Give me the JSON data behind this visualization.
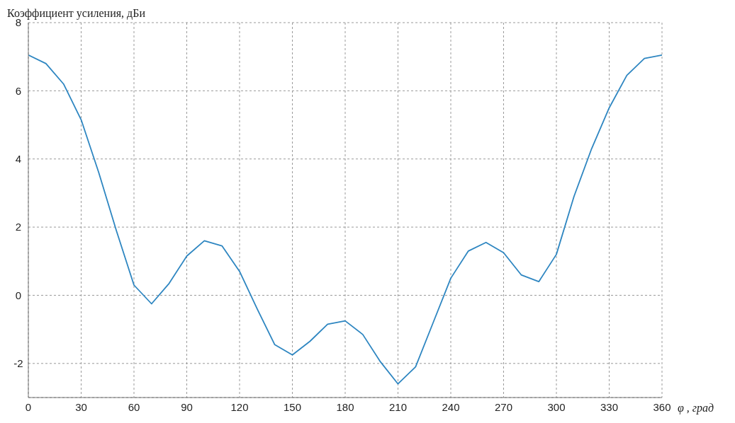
{
  "chart_data": {
    "type": "line",
    "ylabel": "Коэффициент усиления, дБи",
    "xlabel": "φ , град",
    "x": [
      0,
      10,
      20,
      30,
      40,
      50,
      60,
      70,
      80,
      90,
      100,
      110,
      120,
      130,
      140,
      150,
      160,
      170,
      180,
      190,
      200,
      210,
      220,
      230,
      240,
      250,
      260,
      270,
      280,
      290,
      300,
      310,
      320,
      330,
      340,
      350,
      360
    ],
    "series": [
      {
        "color": "#2e86c1",
        "values": [
          7.05,
          6.8,
          6.2,
          5.15,
          3.6,
          1.9,
          0.3,
          -0.25,
          0.35,
          1.15,
          1.6,
          1.45,
          0.7,
          -0.4,
          -1.45,
          -1.75,
          -1.35,
          -0.85,
          -0.75,
          -1.15,
          -1.95,
          -2.6,
          -2.1,
          -0.8,
          0.5,
          1.3,
          1.55,
          1.25,
          0.6,
          0.4,
          1.2,
          2.9,
          4.3,
          5.5,
          6.45,
          6.95,
          7.05
        ]
      }
    ],
    "xlim": [
      0,
      360
    ],
    "xticks": [
      0,
      30,
      60,
      90,
      120,
      150,
      180,
      210,
      240,
      270,
      300,
      330,
      360
    ],
    "ylim": [
      -3,
      8
    ],
    "yticks": [
      -2,
      0,
      2,
      4,
      6,
      8
    ],
    "grid": true,
    "marker": "none",
    "line_style": "solid"
  }
}
